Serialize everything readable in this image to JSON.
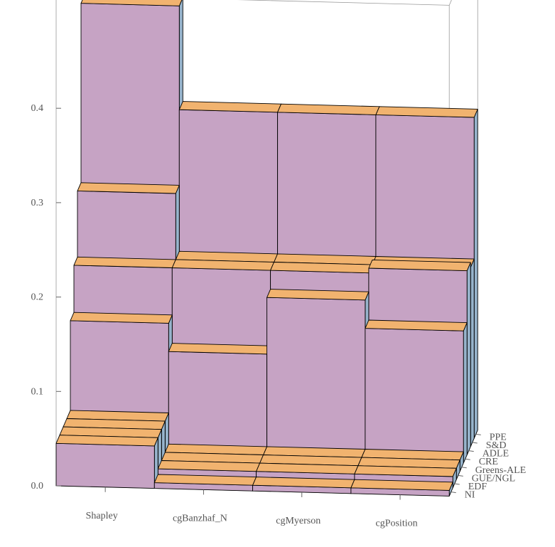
{
  "chart_data": {
    "type": "bar3d",
    "x_categories": [
      "Shapley",
      "cgBanzhaf_N",
      "cgMyerson",
      "cgPosition"
    ],
    "y_categories": [
      "NI",
      "EDF",
      "GUE/NGL",
      "Greens-ALE",
      "CRE",
      "ADLE",
      "S&D",
      "PPE"
    ],
    "z_ticks": [
      "0.0",
      "0.1",
      "0.2",
      "0.3",
      "0.4"
    ],
    "zlim": [
      0,
      0.45
    ],
    "grid": false,
    "legend": "none",
    "series": [
      {
        "values": [
          0.045,
          0.006,
          0.006,
          0.006
        ]
      },
      {
        "values": [
          0.045,
          0.012,
          0.012,
          0.012
        ]
      },
      {
        "values": [
          0.045,
          0.012,
          0.012,
          0.012
        ]
      },
      {
        "values": [
          0.045,
          0.012,
          0.012,
          0.012
        ]
      },
      {
        "values": [
          0.14,
          0.11,
          0.17,
          0.14
        ]
      },
      {
        "values": [
          0.19,
          0.19,
          0.19,
          0.195
        ]
      },
      {
        "values": [
          0.26,
          0.19,
          0.19,
          0.19
        ]
      },
      {
        "values": [
          0.45,
          0.34,
          0.34,
          0.34
        ]
      }
    ],
    "colors": {
      "top": "#f1b36f",
      "front": "#c6a3c4",
      "side": "#97b4cc",
      "edge": "#000000",
      "frame": "#999999",
      "label": "#555555"
    }
  }
}
